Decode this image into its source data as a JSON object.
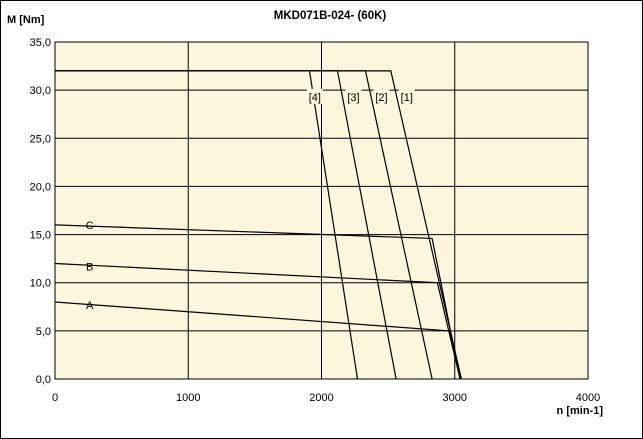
{
  "chart_data": {
    "type": "line",
    "title": "MKD071B-024- (60K)",
    "ylabel": "M [Nm]",
    "xlabel": "n [min-1]",
    "xlim": [
      0,
      4000
    ],
    "ylim": [
      0,
      35
    ],
    "x_ticks": [
      0,
      1000,
      2000,
      3000,
      4000
    ],
    "x_tick_labels": [
      "0",
      "1000",
      "2000",
      "3000",
      "4000"
    ],
    "y_ticks": [
      0,
      5,
      10,
      15,
      20,
      25,
      30,
      35
    ],
    "y_tick_labels": [
      "0,0",
      "5,0",
      "10,0",
      "15,0",
      "20,0",
      "25,0",
      "30,0",
      "35,0"
    ],
    "grid": true,
    "plot_background": "#fbf6dc",
    "line_color": "#000000",
    "series": [
      {
        "name": "[1]",
        "x": [
          0,
          2520,
          3050
        ],
        "y": [
          32,
          32,
          0
        ]
      },
      {
        "name": "[2]",
        "x": [
          0,
          2330,
          2830
        ],
        "y": [
          32,
          32,
          0
        ]
      },
      {
        "name": "[3]",
        "x": [
          0,
          2120,
          2560
        ],
        "y": [
          32,
          32,
          0
        ]
      },
      {
        "name": "[4]",
        "x": [
          0,
          1910,
          2270
        ],
        "y": [
          32,
          32,
          0
        ]
      },
      {
        "name": "C",
        "x": [
          0,
          2830,
          3040
        ],
        "y": [
          16,
          14.6,
          0
        ]
      },
      {
        "name": "B",
        "x": [
          0,
          2870,
          3040
        ],
        "y": [
          12,
          10,
          0
        ]
      },
      {
        "name": "A",
        "x": [
          0,
          2960,
          3040
        ],
        "y": [
          8,
          5,
          0
        ]
      }
    ],
    "annotations": [
      {
        "text": "[1]",
        "x": 2640,
        "y": 29.3,
        "boxed": true
      },
      {
        "text": "[2]",
        "x": 2450,
        "y": 29.3,
        "boxed": true
      },
      {
        "text": "[3]",
        "x": 2240,
        "y": 29.3,
        "boxed": true
      },
      {
        "text": "[4]",
        "x": 1950,
        "y": 29.3,
        "boxed": true
      },
      {
        "text": "C",
        "x": 260,
        "y": 16.0,
        "boxed": false
      },
      {
        "text": "B",
        "x": 260,
        "y": 11.7,
        "boxed": false
      },
      {
        "text": "A",
        "x": 260,
        "y": 7.7,
        "boxed": false
      }
    ]
  }
}
